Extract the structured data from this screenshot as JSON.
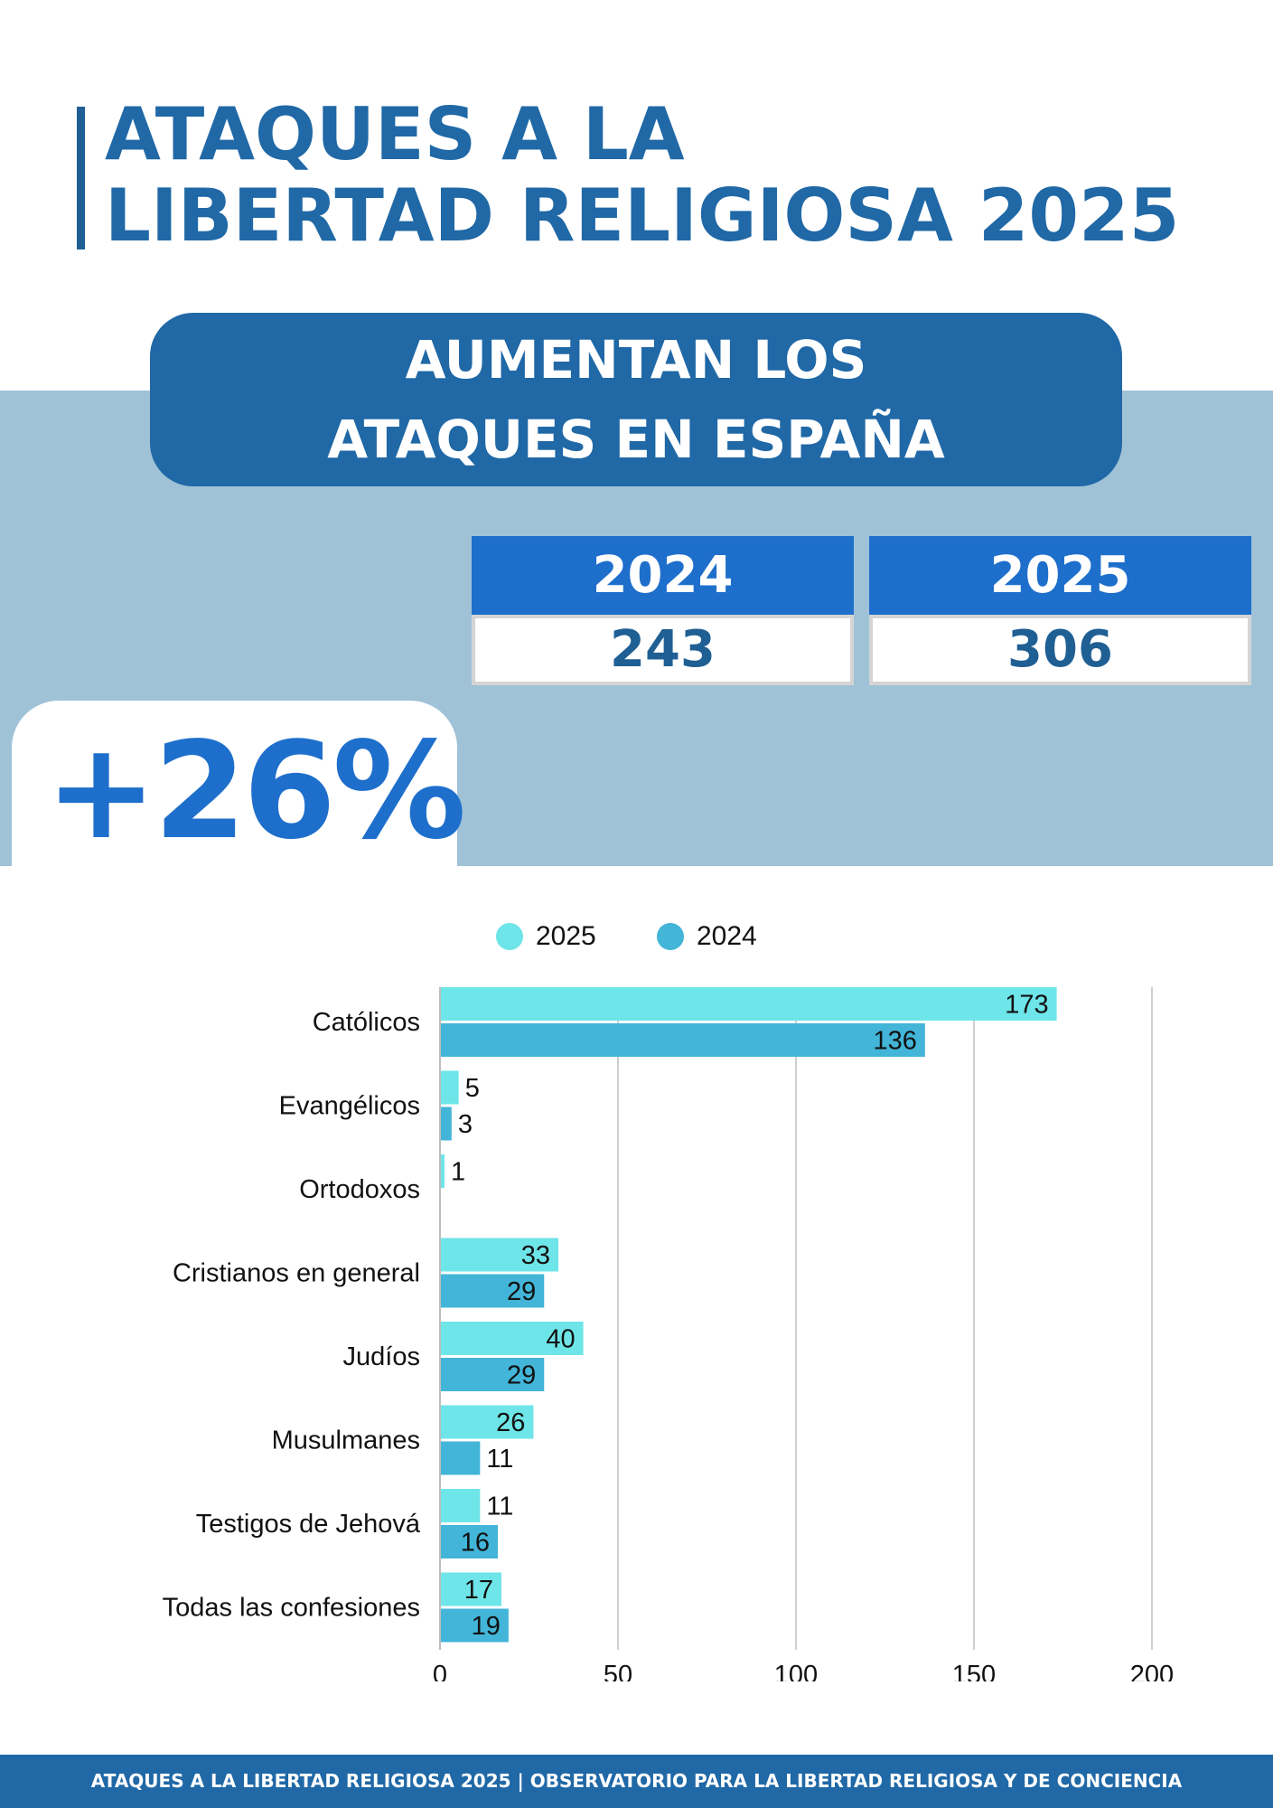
{
  "header": {
    "title_line1": "ATAQUES A LA",
    "title_line2": "LIBERTAD RELIGIOSA 2025"
  },
  "banner": {
    "line1": "AUMENTAN LOS",
    "line2": "ATAQUES EN ESPAÑA"
  },
  "years": [
    {
      "year": "2024",
      "value": "243"
    },
    {
      "year": "2025",
      "value": "306"
    }
  ],
  "change": "+26%",
  "colors": {
    "primary": "#2068a6",
    "accent": "#1e6fcc",
    "band": "#9fc2d7",
    "series_2025": "#6ee5e8",
    "series_2024": "#42b5d8"
  },
  "chart_data": {
    "type": "bar",
    "orientation": "horizontal",
    "categories": [
      "Católicos",
      "Evangélicos",
      "Ortodoxos",
      "Cristianos en general",
      "Judíos",
      "Musulmanes",
      "Testigos de Jehová",
      "Todas las confesiones"
    ],
    "series": [
      {
        "name": "2025",
        "values": [
          173,
          5,
          1,
          33,
          40,
          26,
          11,
          17
        ]
      },
      {
        "name": "2024",
        "values": [
          136,
          3,
          null,
          29,
          29,
          11,
          16,
          19
        ]
      }
    ],
    "xlim": [
      0,
      200
    ],
    "xticks": [
      0,
      50,
      100,
      150,
      200
    ],
    "grid": true,
    "legend": "top"
  },
  "footer": "ATAQUES A LA LIBERTAD RELIGIOSA 2025 | OBSERVATORIO PARA LA LIBERTAD RELIGIOSA Y DE CONCIENCIA"
}
